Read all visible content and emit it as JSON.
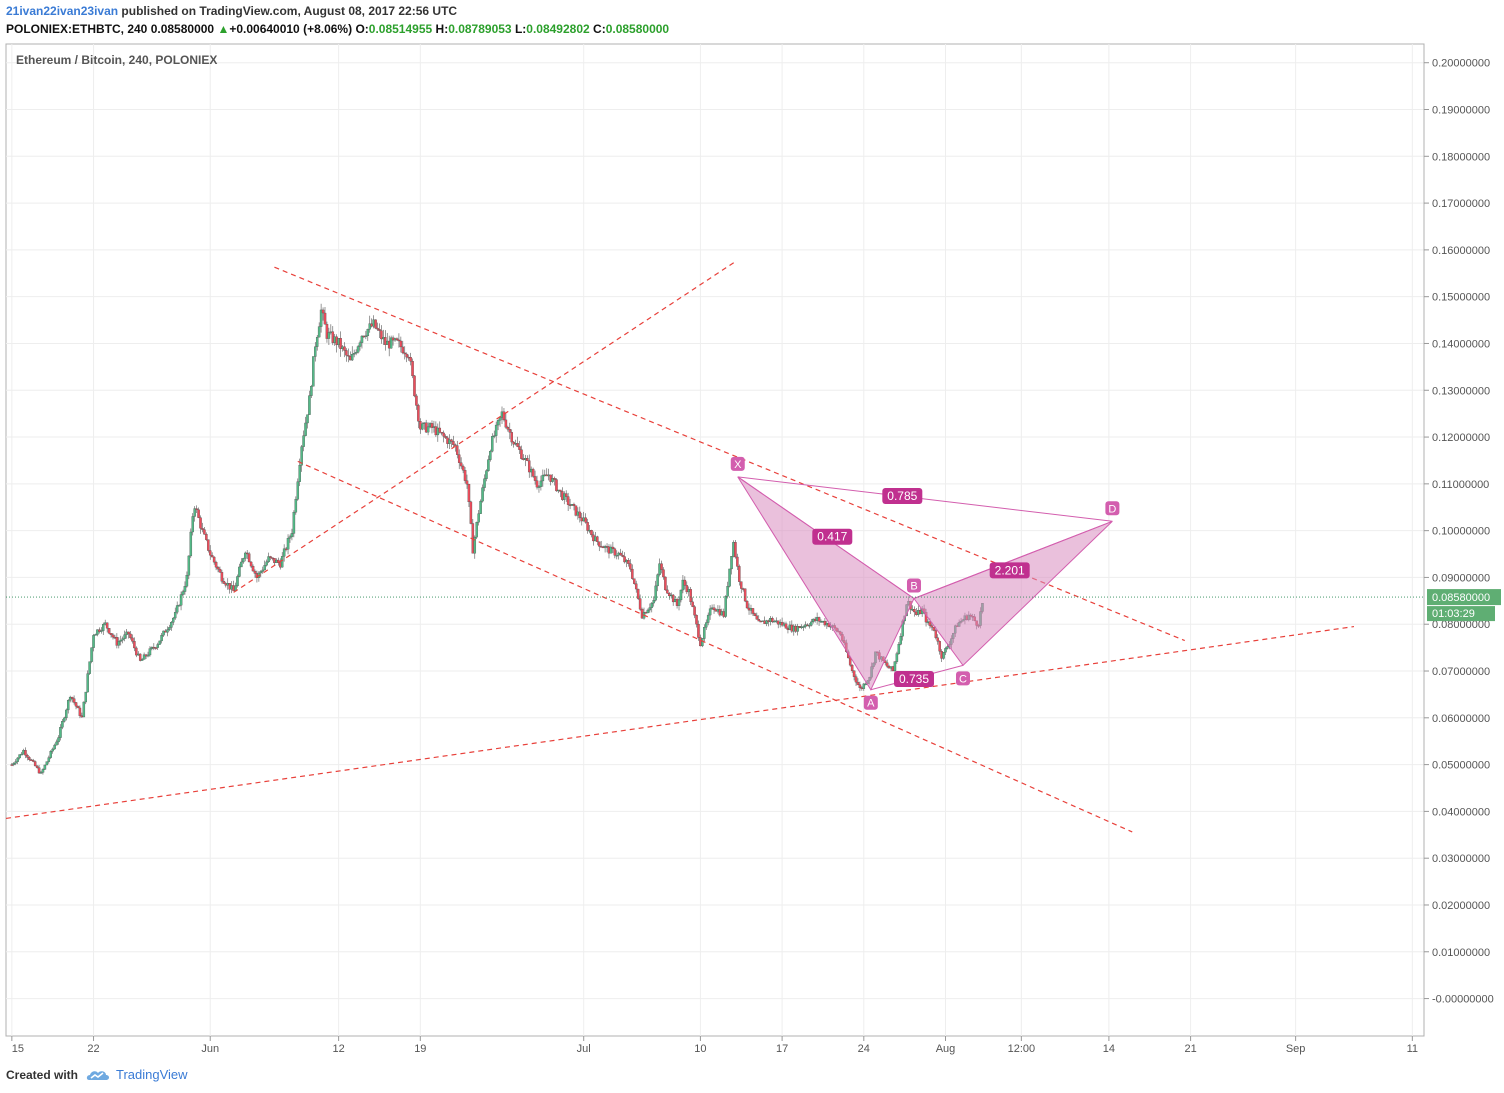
{
  "header": {
    "author": "21ivan22ivan23ivan",
    "published": "published on TradingView.com, August 08, 2017 22:56 UTC",
    "symbol_line": "POLONIEX:ETHBTC, 240  0.08580000",
    "change_arrow": "▲",
    "change": "+0.00640010 (+8.06%)",
    "o_label": "O:",
    "o_value": "0.08514955",
    "h_label": "H:",
    "h_value": "0.08789053",
    "l_label": "L:",
    "l_value": "0.08492802",
    "c_label": "C:",
    "c_value": "0.08580000"
  },
  "footer": {
    "created_with": "Created with",
    "brand": "TradingView",
    "logo_icon": "tradingview-cloud-icon"
  },
  "colors": {
    "up": "#53b987",
    "down": "#eb4d5c",
    "pattern_fill": "#d98cc0",
    "pattern_stroke": "#d35eae",
    "trendline": "#e8403a",
    "price_tag": "#5fae73"
  },
  "chart_data": {
    "type": "candlestick",
    "title": "Ethereum / Bitcoin, 240, POLONIEX",
    "ylim": [
      -0.008,
      0.204
    ],
    "y_ticks": [
      "0.20000000",
      "0.19000000",
      "0.18000000",
      "0.17000000",
      "0.16000000",
      "0.15000000",
      "0.14000000",
      "0.13000000",
      "0.12000000",
      "0.11000000",
      "0.10000000",
      "0.09000000",
      "0.08000000",
      "0.07000000",
      "0.06000000",
      "0.05000000",
      "0.04000000",
      "0.03000000",
      "0.02000000",
      "0.01000000",
      "-0.00000000"
    ],
    "y_tick_values": [
      0.2,
      0.19,
      0.18,
      0.17,
      0.16,
      0.15,
      0.14,
      0.13,
      0.12,
      0.11,
      0.1,
      0.09,
      0.08,
      0.07,
      0.06,
      0.05,
      0.04,
      0.03,
      0.02,
      0.01,
      0
    ],
    "x_ticks": [
      "15",
      "22",
      "Jun",
      "12",
      "19",
      "Jul",
      "10",
      "17",
      "24",
      "Aug",
      "12:00",
      "14",
      "21",
      "Sep",
      "11"
    ],
    "x_tick_days": [
      0,
      7,
      17,
      28,
      35,
      49,
      59,
      66,
      73,
      80,
      86.5,
      94,
      101,
      110,
      120
    ],
    "x_domain_days": [
      -0.5,
      121
    ],
    "last_price": "0.08580000",
    "last_price_value": 0.0858,
    "countdown": "01:03:29",
    "price_anchors": [
      [
        0,
        0.05
      ],
      [
        1,
        0.053
      ],
      [
        2.5,
        0.048
      ],
      [
        4,
        0.056
      ],
      [
        5,
        0.065
      ],
      [
        6,
        0.06
      ],
      [
        7,
        0.078
      ],
      [
        8,
        0.08
      ],
      [
        9,
        0.076
      ],
      [
        10,
        0.078
      ],
      [
        11,
        0.072
      ],
      [
        12.5,
        0.076
      ],
      [
        14,
        0.082
      ],
      [
        15,
        0.09
      ],
      [
        15.6,
        0.106
      ],
      [
        16.3,
        0.1
      ],
      [
        17,
        0.095
      ],
      [
        18,
        0.09
      ],
      [
        19,
        0.087
      ],
      [
        20,
        0.096
      ],
      [
        21,
        0.09
      ],
      [
        22,
        0.094
      ],
      [
        23,
        0.093
      ],
      [
        24,
        0.1
      ],
      [
        24.8,
        0.118
      ],
      [
        25.5,
        0.128
      ],
      [
        26,
        0.14
      ],
      [
        26.5,
        0.147
      ],
      [
        27,
        0.142
      ],
      [
        28,
        0.14
      ],
      [
        29,
        0.136
      ],
      [
        30,
        0.142
      ],
      [
        31,
        0.144
      ],
      [
        32,
        0.14
      ],
      [
        33,
        0.14
      ],
      [
        34,
        0.138
      ],
      [
        34.6,
        0.128
      ],
      [
        35,
        0.122
      ],
      [
        36,
        0.122
      ],
      [
        37,
        0.12
      ],
      [
        38,
        0.118
      ],
      [
        39,
        0.11
      ],
      [
        39.5,
        0.096
      ],
      [
        40,
        0.104
      ],
      [
        41,
        0.118
      ],
      [
        42,
        0.125
      ],
      [
        43,
        0.119
      ],
      [
        44,
        0.115
      ],
      [
        45,
        0.11
      ],
      [
        46,
        0.112
      ],
      [
        47,
        0.108
      ],
      [
        48,
        0.105
      ],
      [
        49,
        0.102
      ],
      [
        50,
        0.098
      ],
      [
        51,
        0.096
      ],
      [
        52,
        0.095
      ],
      [
        53,
        0.092
      ],
      [
        54,
        0.082
      ],
      [
        55,
        0.085
      ],
      [
        55.5,
        0.093
      ],
      [
        56,
        0.088
      ],
      [
        57,
        0.084
      ],
      [
        57.5,
        0.089
      ],
      [
        58,
        0.087
      ],
      [
        59,
        0.076
      ],
      [
        60,
        0.084
      ],
      [
        61,
        0.082
      ],
      [
        61.8,
        0.098
      ],
      [
        62.3,
        0.09
      ],
      [
        63,
        0.084
      ],
      [
        64,
        0.08
      ],
      [
        65,
        0.081
      ],
      [
        66,
        0.08
      ],
      [
        67,
        0.079
      ],
      [
        68,
        0.08
      ],
      [
        69,
        0.081
      ],
      [
        70,
        0.08
      ],
      [
        71,
        0.078
      ],
      [
        72,
        0.07
      ],
      [
        72.7,
        0.066
      ],
      [
        73.5,
        0.069
      ],
      [
        74,
        0.074
      ],
      [
        75,
        0.071
      ],
      [
        75.5,
        0.07
      ],
      [
        76,
        0.076
      ],
      [
        76.7,
        0.085
      ],
      [
        77.5,
        0.082
      ],
      [
        78,
        0.083
      ],
      [
        78.5,
        0.08
      ],
      [
        79,
        0.079
      ],
      [
        79.7,
        0.073
      ],
      [
        80.3,
        0.076
      ],
      [
        81,
        0.08
      ],
      [
        82,
        0.082
      ],
      [
        82.8,
        0.08
      ],
      [
        83.3,
        0.086
      ]
    ],
    "trendlines": [
      {
        "from": [
          -0.5,
          0.0385
        ],
        "to": [
          115,
          0.0795
        ]
      },
      {
        "from": [
          22.5,
          0.1563
        ],
        "to": [
          100.5,
          0.0765
        ]
      },
      {
        "from": [
          24.5,
          0.1148
        ],
        "to": [
          96,
          0.0356
        ]
      },
      {
        "from": [
          19,
          0.0868
        ],
        "to": [
          62,
          0.1575
        ]
      }
    ],
    "pattern": {
      "points": {
        "X": [
          62.2,
          0.1115
        ],
        "A": [
          73.6,
          0.066
        ],
        "B": [
          77.3,
          0.0855
        ],
        "C": [
          81.5,
          0.0712
        ],
        "D": [
          94.3,
          0.102
        ]
      },
      "point_labels": [
        "X",
        "A",
        "B",
        "C",
        "D"
      ],
      "ratios": [
        {
          "label": "0.417",
          "at": [
            70.3,
            0.0987
          ]
        },
        {
          "label": "0.785",
          "at": [
            76.3,
            0.1074
          ]
        },
        {
          "label": "0.735",
          "at": [
            77.3,
            0.0683
          ]
        },
        {
          "label": "2.201",
          "at": [
            85.5,
            0.0915
          ]
        }
      ]
    }
  }
}
